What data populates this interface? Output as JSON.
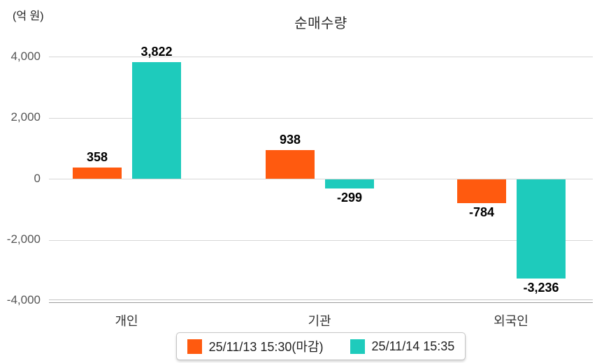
{
  "chart_data": {
    "type": "bar",
    "title": "순매수량",
    "ylabel": "(억 원)",
    "categories": [
      "개인",
      "기관",
      "외국인"
    ],
    "series": [
      {
        "name": "25/11/13 15:30(마감)",
        "color": "#FF5A0F",
        "values": [
          358,
          938,
          -784
        ],
        "labels": [
          "358",
          "938",
          "-784"
        ]
      },
      {
        "name": "25/11/14 15:35",
        "color": "#1ECBBC",
        "values": [
          3822,
          -299,
          -3236
        ],
        "labels": [
          "3,822",
          "-299",
          "-3,236"
        ]
      }
    ],
    "y_ticks": [
      "4,000",
      "2,000",
      "0",
      "-2,000",
      "-4,000"
    ],
    "y_tick_values": [
      4000,
      2000,
      0,
      -2000,
      -4000
    ],
    "ylim": [
      -4000,
      4000
    ],
    "grid": true,
    "legend_position": "bottom"
  }
}
